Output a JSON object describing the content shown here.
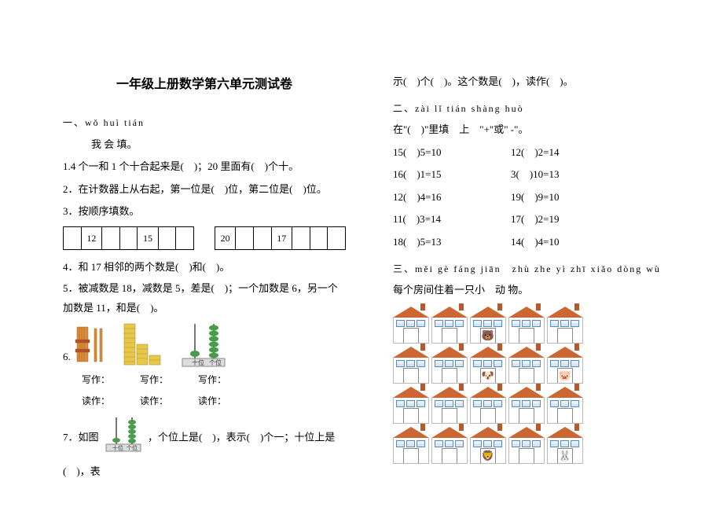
{
  "title": "一年级上册数学第六单元测试卷",
  "s1": {
    "pinyin": "一、wǒ huì tián",
    "label": "我 会 填。",
    "q1": "1.4 个一和 1 个十合起来是(　)；20 里面有(　)个十。",
    "q2": "2．在计数器上从右起，第一位是(　)位，第二位是(　)位。",
    "q3": "3．按顺序填数。",
    "seq1": [
      "",
      "12",
      "",
      "",
      "15",
      "",
      ""
    ],
    "seq2": [
      "20",
      "",
      "",
      "17",
      "",
      "",
      ""
    ],
    "q4": "4．和 17 相邻的两个数是(　)和(　)。",
    "q5": "5．被减数是 18，减数是 5，差是(　)；一个加数是 6，另一个加数是 11，和是(　)。",
    "q6_num": "6.",
    "write_label": "写作：",
    "read_label": "读作：",
    "q7a": "7．如图",
    "q7b": "，个位上是(　)，表示(　)个一；十位上是(　)，表",
    "q7_cont": "示(　)个(　)。这个数是(　)，读作(　)。",
    "abacus_tens": "十位",
    "abacus_ones": "个位"
  },
  "s2": {
    "pinyin": "二、zài  lǐ  tián shàng  huò",
    "label": "在\"(　)\"里填　上　\"+\"或\" -\"。",
    "eq": [
      [
        "15(　)5=10",
        "12(　)2=14"
      ],
      [
        "16(　)1=15",
        "3(　)10=13"
      ],
      [
        "12(　)4=16",
        "19(　)9=10"
      ],
      [
        "11(　)3=14",
        "17(　)2=19"
      ],
      [
        "18(　)5=13",
        "14(　)4=10"
      ]
    ]
  },
  "s3": {
    "pinyin": "三、měi gè fáng jiān　zhù zhe yì zhī  xiǎo dòng wù",
    "label": "每个房间住着一只小　动 物。",
    "animals": [
      "",
      "",
      "🐻",
      "",
      "",
      "",
      "",
      "🐶",
      "",
      "🐷",
      "",
      "",
      "",
      "",
      "",
      "",
      "",
      "🦁",
      "",
      "🐰"
    ]
  },
  "colors": {
    "roof": "#cc6633",
    "chimney": "#b55a2f",
    "abacus_bead": "#4a9b4a",
    "stick_orange": "#d98b3a",
    "block_yellow": "#e8c84a",
    "block_border": "#b09020"
  }
}
